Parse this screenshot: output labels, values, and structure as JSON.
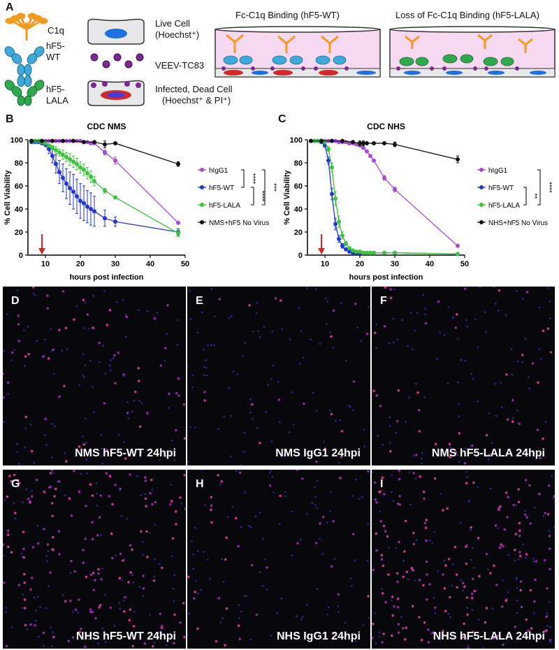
{
  "panel_letters": {
    "a": "A",
    "b": "B",
    "c": "C",
    "d": "D",
    "e": "E",
    "f": "F",
    "g": "G",
    "h": "H",
    "i": "I"
  },
  "legend_A": {
    "c1q": "C1q",
    "hf5wt_line1": "hF5-",
    "hf5wt_line2": "WT",
    "hf5lala_line1": "hF5-",
    "hf5lala_line2": "LALA",
    "live_line1": "Live Cell",
    "live_line2": "(Hoechst⁺)",
    "virus": "VEEV-TC83",
    "infected_line1": "Infected, Dead Cell",
    "infected_line2": "(Hoechst⁺ & PI⁺)"
  },
  "schematic": {
    "left_title": "Fc-C1q Binding (hF5-WT)",
    "right_title": "Loss of Fc-C1q Binding (hF5-LALA)"
  },
  "colors": {
    "purple": "#a64bd6",
    "blue": "#2136d6",
    "green": "#3cc43c",
    "black": "#111111",
    "red_arrow": "#e0201b",
    "c1q": "#f29a1f",
    "wt_ab": "#3fa9d8",
    "lala_ab": "#2fa84f"
  },
  "chart_data": [
    {
      "type": "line",
      "title": "CDC NMS",
      "xlabel": "hours post infection",
      "ylabel": "% Cell Viability",
      "xlim": [
        5,
        50
      ],
      "ylim": [
        0,
        100
      ],
      "xticks": [
        "10",
        "20",
        "30",
        "40",
        "50"
      ],
      "yticks": [
        "0",
        "20",
        "40",
        "60",
        "80",
        "100"
      ],
      "arrow_x": 9,
      "significance": [
        "****",
        "***",
        "****"
      ],
      "series": [
        {
          "name": "hIgG1",
          "color": "#a64bd6",
          "x": [
            6,
            7,
            8,
            9,
            10,
            11,
            12,
            13,
            14,
            15,
            16,
            17,
            18,
            19,
            20,
            21,
            22,
            23,
            24,
            27,
            30,
            48
          ],
          "y": [
            99,
            99,
            99,
            99,
            99,
            99,
            99,
            99,
            99,
            99,
            99,
            99,
            99,
            99,
            99,
            98,
            98,
            97,
            97,
            89,
            82,
            28
          ],
          "err": [
            0,
            0,
            0,
            0,
            0,
            0,
            0,
            0,
            0,
            0,
            0,
            0,
            0,
            0,
            0,
            0,
            1,
            1,
            1,
            2,
            3,
            1
          ]
        },
        {
          "name": "hF5-WT",
          "color": "#2136d6",
          "x": [
            6,
            7,
            8,
            9,
            10,
            11,
            12,
            13,
            14,
            15,
            16,
            17,
            18,
            19,
            20,
            21,
            22,
            23,
            24,
            27,
            30,
            48
          ],
          "y": [
            98,
            98,
            98,
            97,
            96,
            92,
            86,
            79,
            72,
            67,
            62,
            58,
            55,
            51,
            47,
            45,
            42,
            40,
            38,
            32,
            29,
            20
          ],
          "err": [
            0,
            0,
            0,
            1,
            2,
            4,
            6,
            8,
            10,
            12,
            13,
            14,
            15,
            15,
            15,
            15,
            14,
            14,
            13,
            7,
            4,
            3
          ]
        },
        {
          "name": "hF5-LALA",
          "color": "#3cc43c",
          "x": [
            6,
            7,
            8,
            9,
            10,
            11,
            12,
            13,
            14,
            15,
            16,
            17,
            18,
            19,
            20,
            21,
            22,
            23,
            24,
            27,
            30,
            48
          ],
          "y": [
            99,
            99,
            99,
            98,
            97,
            95,
            93,
            91,
            89,
            87,
            85,
            83,
            81,
            79,
            76,
            74,
            71,
            68,
            64,
            56,
            50,
            19
          ],
          "err": [
            0,
            0,
            0,
            0,
            1,
            1,
            2,
            3,
            3,
            4,
            4,
            5,
            5,
            5,
            5,
            5,
            5,
            5,
            4,
            2,
            1,
            3
          ]
        },
        {
          "name": "NMS+hF5 No Virus",
          "color": "#111111",
          "x": [
            6,
            9,
            12,
            15,
            18,
            21,
            24,
            27,
            30,
            48
          ],
          "y": [
            99,
            99,
            99,
            99,
            99,
            98,
            98,
            96,
            97,
            79
          ],
          "err": [
            0,
            0,
            0,
            0,
            0,
            1,
            1,
            3,
            1,
            2
          ]
        }
      ]
    },
    {
      "type": "line",
      "title": "CDC NHS",
      "xlabel": "hours post infection",
      "ylabel": "% Cell Viability",
      "xlim": [
        5,
        50
      ],
      "ylim": [
        0,
        100
      ],
      "xticks": [
        "10",
        "20",
        "30",
        "40",
        "50"
      ],
      "yticks": [
        "0",
        "20",
        "40",
        "60",
        "80",
        "100"
      ],
      "arrow_x": 9,
      "significance": [
        "****",
        "**"
      ],
      "series": [
        {
          "name": "hIgG1",
          "color": "#a64bd6",
          "x": [
            6,
            7,
            8,
            9,
            10,
            11,
            12,
            13,
            14,
            15,
            16,
            17,
            18,
            19,
            20,
            21,
            22,
            23,
            24,
            27,
            30,
            48
          ],
          "y": [
            99,
            99,
            99,
            99,
            99,
            99,
            99,
            99,
            98,
            98,
            98,
            97,
            97,
            96,
            95,
            93,
            90,
            86,
            82,
            67,
            57,
            8
          ],
          "err": [
            0,
            0,
            0,
            0,
            0,
            0,
            0,
            0,
            0,
            0,
            0,
            0,
            0,
            1,
            1,
            1,
            1,
            1,
            1,
            2,
            2,
            1
          ]
        },
        {
          "name": "hF5-WT",
          "color": "#2136d6",
          "x": [
            6,
            7,
            8,
            9,
            10,
            11,
            12,
            13,
            14,
            15,
            16,
            17,
            18,
            19,
            20,
            21,
            22,
            23,
            24,
            27,
            30,
            48
          ],
          "y": [
            99,
            99,
            99,
            98,
            95,
            82,
            53,
            27,
            14,
            8,
            5,
            3,
            2,
            2,
            2,
            2,
            2,
            2,
            2,
            2,
            2,
            1
          ],
          "err": [
            0,
            0,
            0,
            1,
            1,
            3,
            5,
            5,
            3,
            2,
            1,
            1,
            0,
            0,
            0,
            0,
            0,
            0,
            0,
            0,
            0,
            0
          ]
        },
        {
          "name": "hF5-LALA",
          "color": "#3cc43c",
          "x": [
            6,
            7,
            8,
            9,
            10,
            11,
            12,
            13,
            14,
            15,
            16,
            17,
            18,
            19,
            20,
            21,
            22,
            23,
            24,
            27,
            30,
            48
          ],
          "y": [
            99,
            99,
            99,
            99,
            98,
            92,
            76,
            49,
            29,
            17,
            10,
            6,
            4,
            3,
            3,
            2,
            2,
            2,
            2,
            2,
            2,
            1
          ],
          "err": [
            0,
            0,
            0,
            0,
            1,
            2,
            4,
            6,
            5,
            3,
            2,
            1,
            1,
            0,
            0,
            0,
            0,
            0,
            0,
            0,
            0,
            0
          ]
        },
        {
          "name": "NHS+hF5 No Virus",
          "color": "#111111",
          "x": [
            6,
            9,
            12,
            15,
            18,
            20,
            21,
            22,
            24,
            27,
            30,
            48
          ],
          "y": [
            99,
            99,
            99,
            99,
            98,
            97,
            97,
            97,
            97,
            97,
            96,
            83
          ],
          "err": [
            0,
            0,
            0,
            0,
            1,
            2,
            2,
            1,
            1,
            1,
            2,
            3
          ]
        }
      ]
    }
  ],
  "micrographs": [
    {
      "letter": "D",
      "label": "NMS hF5-WT 24hpi"
    },
    {
      "letter": "E",
      "label": "NMS IgG1 24hpi"
    },
    {
      "letter": "F",
      "label": "NMS hF5-LALA 24hpi"
    },
    {
      "letter": "G",
      "label": "NHS hF5-WT 24hpi"
    },
    {
      "letter": "H",
      "label": "NHS IgG1 24hpi"
    },
    {
      "letter": "I",
      "label": "NHS hF5-LALA 24hpi"
    }
  ]
}
